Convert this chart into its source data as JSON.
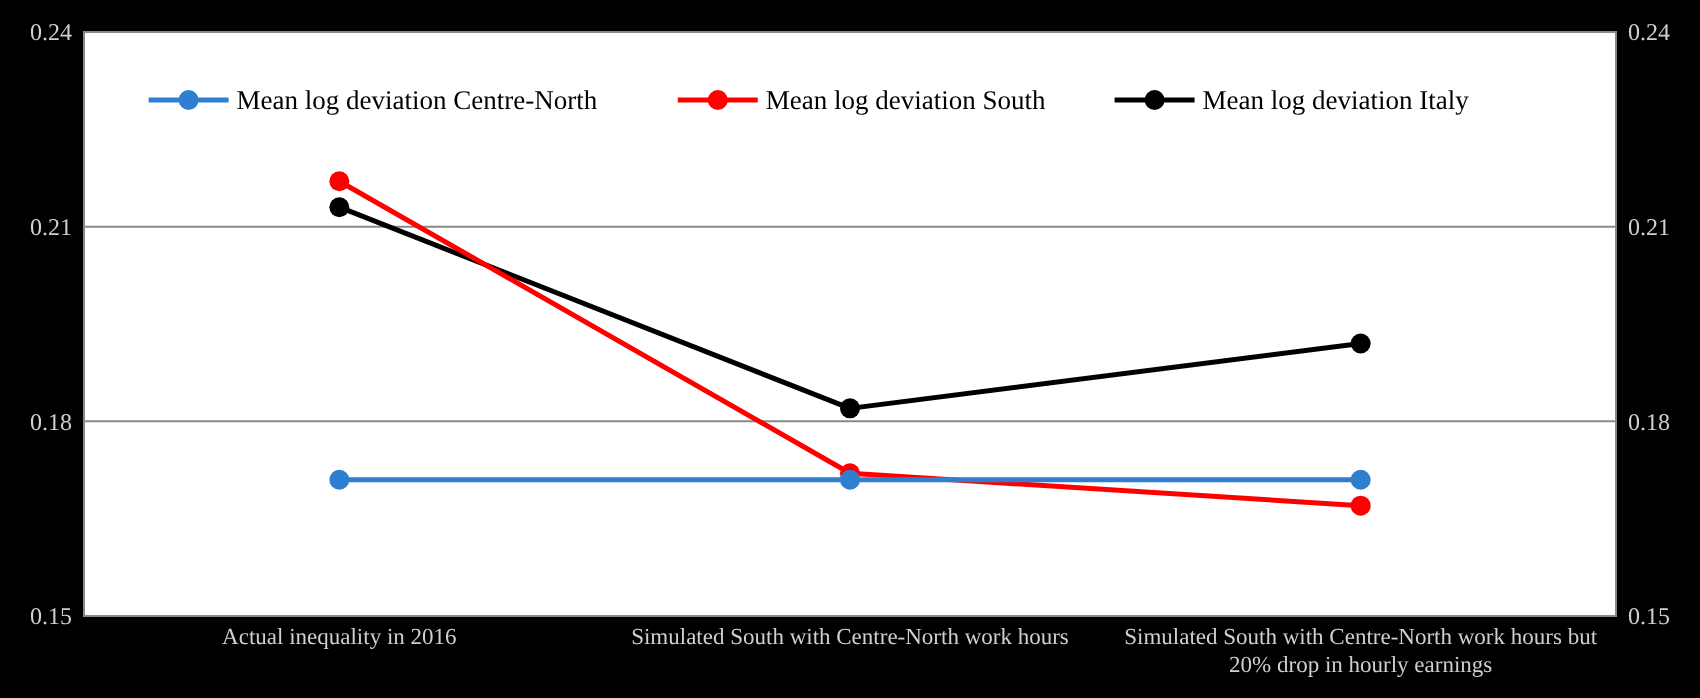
{
  "chart_data": {
    "type": "line",
    "categories": [
      "Actual inequality in 2016",
      "Simulated South with Centre-North work hours",
      "Simulated South with Centre-North work hours but 20% drop in hourly earnings"
    ],
    "series": [
      {
        "name": "Mean log deviation Centre-North",
        "color": "#2f7fd0",
        "values": [
          0.171,
          0.171,
          0.171
        ]
      },
      {
        "name": "Mean log deviation South",
        "color": "#ff0000",
        "values": [
          0.217,
          0.172,
          0.167
        ]
      },
      {
        "name": "Mean log deviation Italy",
        "color": "#000000",
        "values": [
          0.213,
          0.182,
          0.192
        ]
      }
    ],
    "ylim": [
      0.15,
      0.24
    ],
    "yticks": [
      0.15,
      0.18,
      0.21,
      0.24
    ],
    "y2lim": [
      0.15,
      0.24
    ],
    "y2ticks": [
      0.15,
      0.18,
      0.21,
      0.24
    ],
    "grid": "y",
    "legend": "top",
    "marker": "circle",
    "line_style": "solid"
  }
}
